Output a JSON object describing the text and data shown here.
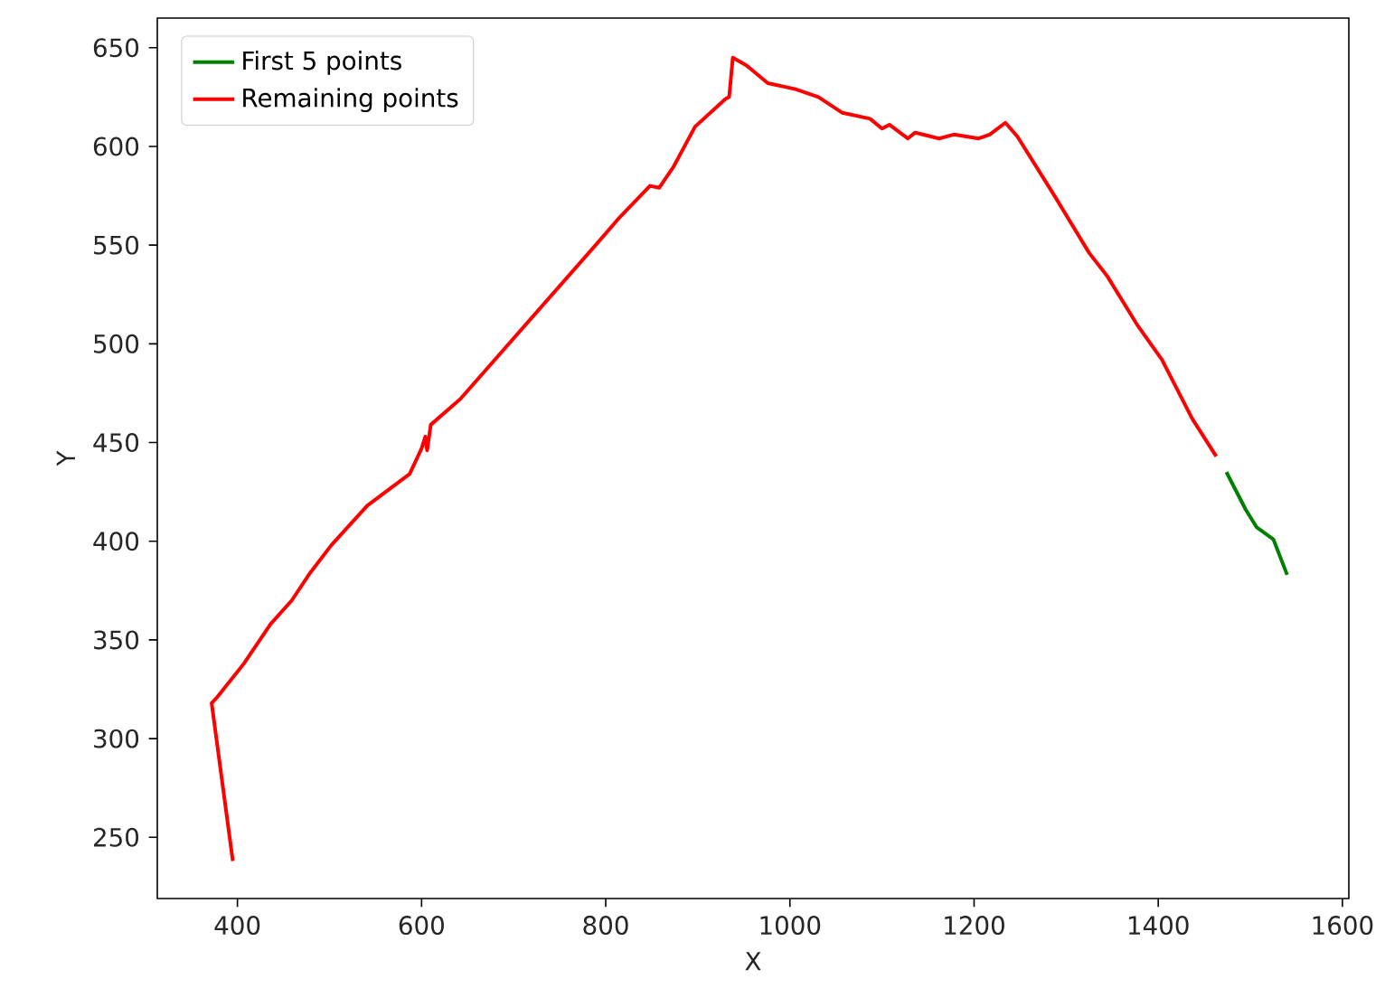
{
  "chart_data": {
    "type": "line",
    "xlabel": "X",
    "ylabel": "Y",
    "xlim": [
      313,
      1607
    ],
    "ylim": [
      219,
      665
    ],
    "xticks": [
      400,
      600,
      800,
      1000,
      1200,
      1400,
      1600
    ],
    "yticks": [
      250,
      300,
      350,
      400,
      450,
      500,
      550,
      600,
      650
    ],
    "legend": "top left",
    "grid": false,
    "series": [
      {
        "name": "First 5 points",
        "color": "#008000",
        "x": [
          1474,
          1495,
          1507,
          1525,
          1540
        ],
        "values": [
          435,
          416,
          407,
          401,
          383
        ]
      },
      {
        "name": "Remaining points",
        "color": "#ff0000",
        "x": [
          395,
          372,
          378,
          407,
          436,
          459,
          479,
          502,
          541,
          561,
          587,
          600,
          604,
          606,
          610,
          642,
          789,
          815,
          848,
          858,
          874,
          897,
          930,
          934,
          938,
          953,
          976,
          1006,
          1031,
          1057,
          1087,
          1100,
          1108,
          1128,
          1136,
          1162,
          1178,
          1205,
          1217,
          1234,
          1247,
          1286,
          1325,
          1345,
          1378,
          1404,
          1437,
          1463
        ],
        "values": [
          238,
          318,
          321,
          338,
          358,
          370,
          384,
          398,
          418,
          425,
          434,
          447,
          453,
          446,
          459,
          472,
          550,
          564,
          580,
          579,
          590,
          610,
          624,
          625,
          645,
          641,
          632,
          629,
          625,
          617,
          614,
          609,
          611,
          604,
          607,
          604,
          606,
          604,
          606,
          612,
          605,
          576,
          546,
          534,
          509,
          492,
          462,
          443
        ]
      }
    ]
  }
}
